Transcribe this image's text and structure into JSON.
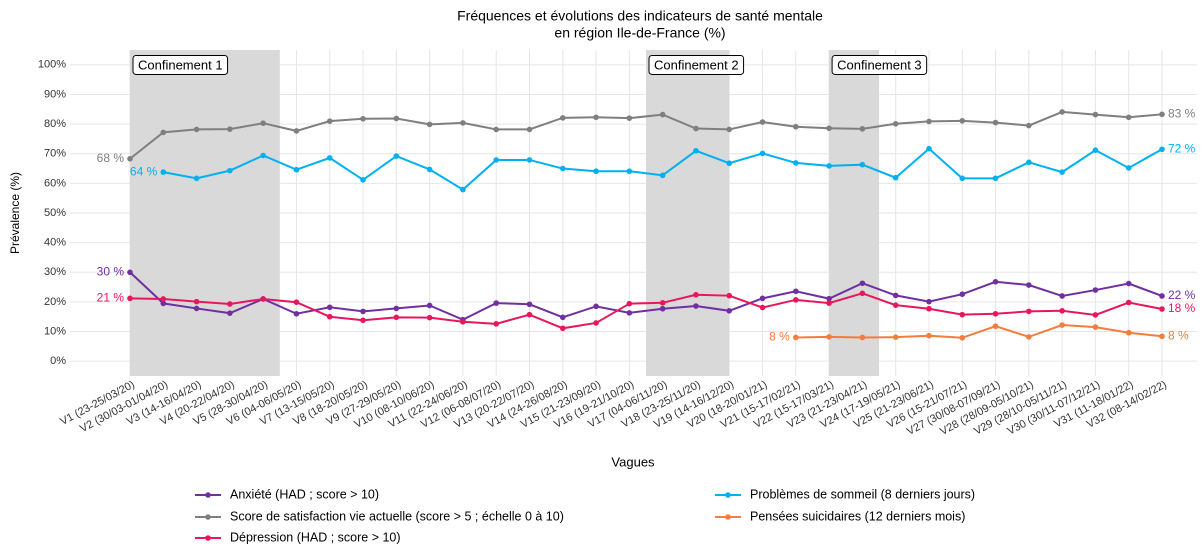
{
  "chart_data": {
    "type": "line",
    "title": [
      "Fréquences et évolutions des indicateurs de santé mentale",
      "en région Ile-de-France (%)"
    ],
    "ylabel": "Prévalence (%)",
    "xlabel": "Vagues",
    "categories": [
      "V1 (23-25/03/20)",
      "V2 (30/03-01/04/20)",
      "V3 (14-16/04/20)",
      "V4 (20-22/04/20)",
      "V5 (28-30/04/20)",
      "V6 (04-06/05/20)",
      "V7 (13-15/05/20)",
      "V8 (18-20/05/20)",
      "V9 (27-29/05/20)",
      "V10 (08-10/06/20)",
      "V11 (22-24/06/20)",
      "V12 (06-08/07/20)",
      "V13 (20-22/07/20)",
      "V14 (24-26/08/20)",
      "V15 (21-23/09/20)",
      "V16 (19-21/10/20)",
      "V17 (04-06/11/20)",
      "V18 (23-25/11/20)",
      "V19 (14-16/12/20)",
      "V20 (18-20/01/21)",
      "V21 (15-17/02/21)",
      "V22 (15-17/03/21)",
      "V23 (21-23/04/21)",
      "V24 (17-19/05/21)",
      "V25 (21-23/06/21)",
      "V26 (15-21/07/21)",
      "V27 (30/08-07/09/21)",
      "V28 (28/09-05/10/21)",
      "V29 (28/10-05/11/21)",
      "V30 (30/11-07/12/21)",
      "V31 (11-18/01/22)",
      "V32 (08-14/02/22)"
    ],
    "series": [
      {
        "name": "Anxiété (HAD ; score > 10)",
        "color": "#7030a0",
        "values": [
          30,
          19.5,
          17.8,
          16.2,
          21,
          16,
          18.2,
          16.8,
          17.8,
          18.8,
          14,
          19.6,
          19.2,
          14.8,
          18.5,
          16.3,
          17.7,
          18.6,
          17,
          21.2,
          23.6,
          21.1,
          26.3,
          22.2,
          20.1,
          22.6,
          26.8,
          25.7,
          22,
          24,
          26.2,
          22
        ],
        "value_labels": [
          "30 %",
          null,
          null,
          null,
          null,
          null,
          null,
          null,
          null,
          null,
          null,
          null,
          null,
          null,
          null,
          null,
          null,
          null,
          null,
          null,
          null,
          null,
          null,
          null,
          null,
          null,
          null,
          null,
          null,
          null,
          null,
          "22 %"
        ]
      },
      {
        "name": "Score de satisfaction vie actuelle (score > 5 ; échelle 0 à 10)",
        "color": "#7f7f7f",
        "values": [
          68.3,
          77.2,
          78.2,
          78.3,
          80.3,
          77.7,
          81,
          81.8,
          81.9,
          79.9,
          80.4,
          78.2,
          78.2,
          82.1,
          82.3,
          82,
          83.2,
          78.5,
          78.2,
          80.7,
          79.1,
          78.6,
          78.4,
          80.1,
          80.9,
          81.1,
          80.5,
          79.5,
          84.1,
          83.2,
          82.3,
          83.3
        ],
        "value_labels": [
          "68 %",
          null,
          null,
          null,
          null,
          null,
          null,
          null,
          null,
          null,
          null,
          null,
          null,
          null,
          null,
          null,
          null,
          null,
          null,
          null,
          null,
          null,
          null,
          null,
          null,
          null,
          null,
          null,
          null,
          null,
          null,
          "83 %"
        ]
      },
      {
        "name": "Dépression (HAD ; score > 10)",
        "color": "#e8175d",
        "values": [
          21.2,
          21,
          20.1,
          19.3,
          21,
          19.9,
          15,
          13.8,
          14.8,
          14.7,
          13.3,
          12.6,
          15.7,
          11.1,
          12.9,
          19.4,
          19.7,
          22.4,
          22.1,
          18.1,
          20.7,
          19.6,
          22.9,
          18.9,
          17.7,
          15.7,
          16,
          16.8,
          17,
          15.6,
          19.8,
          17.6
        ],
        "value_labels": [
          "21 %",
          null,
          null,
          null,
          null,
          null,
          null,
          null,
          null,
          null,
          null,
          null,
          null,
          null,
          null,
          null,
          null,
          null,
          null,
          null,
          null,
          null,
          null,
          null,
          null,
          null,
          null,
          null,
          null,
          null,
          null,
          "18 %"
        ]
      },
      {
        "name": "Problèmes de sommeil (8 derniers jours)",
        "color": "#00b0f0",
        "values": [
          null,
          63.8,
          61.7,
          64.3,
          69.4,
          64.6,
          68.6,
          61.2,
          69.2,
          64.7,
          57.9,
          67.9,
          67.9,
          65,
          64.1,
          64.1,
          62.7,
          71,
          66.8,
          70.1,
          66.9,
          65.9,
          66.3,
          61.9,
          71.7,
          61.7,
          61.7,
          67.1,
          63.8,
          71.2,
          65.2,
          71.5
        ],
        "value_labels": [
          null,
          "64 %",
          null,
          null,
          null,
          null,
          null,
          null,
          null,
          null,
          null,
          null,
          null,
          null,
          null,
          null,
          null,
          null,
          null,
          null,
          null,
          null,
          null,
          null,
          null,
          null,
          null,
          null,
          null,
          null,
          null,
          "72 %"
        ]
      },
      {
        "name": "Pensées suicidaires (12 derniers mois)",
        "color": "#f47c3c",
        "values": [
          null,
          null,
          null,
          null,
          null,
          null,
          null,
          null,
          null,
          null,
          null,
          null,
          null,
          null,
          null,
          null,
          null,
          null,
          null,
          null,
          8,
          8.2,
          8,
          8.1,
          8.6,
          7.9,
          11.8,
          8.2,
          12.2,
          11.5,
          9.6,
          8.4
        ],
        "value_labels": [
          null,
          null,
          null,
          null,
          null,
          null,
          null,
          null,
          null,
          null,
          null,
          null,
          null,
          null,
          null,
          null,
          null,
          null,
          null,
          null,
          "8 %",
          null,
          null,
          null,
          null,
          null,
          null,
          null,
          null,
          null,
          null,
          "8 %"
        ]
      }
    ],
    "spans": [
      {
        "label": "Confinement 1",
        "start": 0,
        "end": 4.5
      },
      {
        "label": "Confinement 2",
        "start": 15.5,
        "end": 18
      },
      {
        "label": "Confinement 3",
        "start": 21,
        "end": 22.5
      }
    ],
    "ylim": [
      -5,
      105
    ],
    "yticks": [
      {
        "value": 0,
        "label": "0%"
      },
      {
        "value": 10,
        "label": "10%"
      },
      {
        "value": 20,
        "label": "20%"
      },
      {
        "value": 30,
        "label": "30%"
      },
      {
        "value": 40,
        "label": "40%"
      },
      {
        "value": 50,
        "label": "50%"
      },
      {
        "value": 60,
        "label": "60%"
      },
      {
        "value": 70,
        "label": "70%"
      },
      {
        "value": 80,
        "label": "80%"
      },
      {
        "value": 90,
        "label": "90%"
      },
      {
        "value": 100,
        "label": "100%"
      }
    ],
    "grid": true
  }
}
